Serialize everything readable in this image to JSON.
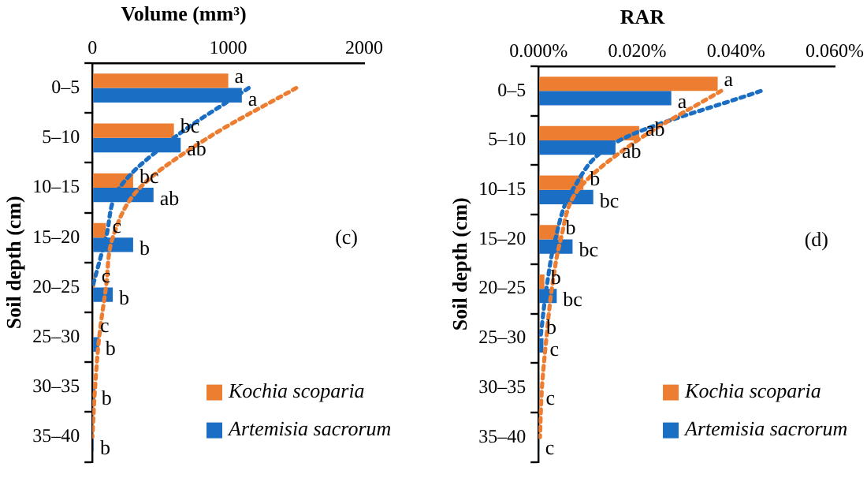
{
  "chart_data": [
    {
      "type": "bar",
      "orientation": "horizontal",
      "title": "Volume (mm³)",
      "ylabel": "Soil depth (cm)",
      "categories": [
        "0–5",
        "5–10",
        "10–15",
        "15–20",
        "20–25",
        "25–30",
        "30–35",
        "35–40"
      ],
      "series": [
        {
          "name": "Kochia scoparia",
          "color": "#ed7d31",
          "values": [
            1000,
            600,
            300,
            100,
            20,
            10,
            null,
            null
          ],
          "value_labels": [
            "a",
            "bc",
            "bc",
            "c",
            "c",
            "c",
            null,
            null
          ]
        },
        {
          "name": "Artemisia sacrorum",
          "color": "#1a6fc4",
          "values": [
            1100,
            650,
            450,
            300,
            150,
            50,
            20,
            10
          ],
          "value_labels": [
            "a",
            "ab",
            "ab",
            "b",
            "b",
            "b",
            "b",
            "b"
          ]
        },
        {
          "type": "line",
          "color": "#1a6fc4",
          "line_style": "dotted",
          "marker": "none",
          "values": [
            1150,
            600,
            200,
            100,
            0,
            null,
            null,
            null
          ]
        },
        {
          "type": "line",
          "color": "#ed7d31",
          "line_style": "dotted",
          "marker": "none",
          "values": [
            1500,
            850,
            350,
            150,
            100,
            50,
            20,
            0
          ]
        }
      ],
      "xlim": [
        0,
        2000
      ],
      "xticks": [
        0,
        1000,
        2000
      ],
      "grid": false,
      "legend": "bottom right",
      "annotations": [
        "(c)"
      ]
    },
    {
      "type": "bar",
      "orientation": "horizontal",
      "title": "RAR",
      "ylabel": "Soil depth (cm)",
      "categories": [
        "0–5",
        "5–10",
        "10–15",
        "15–20",
        "20–25",
        "25–30",
        "30–35",
        "35–40"
      ],
      "series": [
        {
          "name": "Kochia scoparia",
          "color": "#ed7d31",
          "values": [
            0.0363,
            0.0204,
            0.0091,
            0.0042,
            0.0012,
            0.0003,
            null,
            null
          ],
          "value_labels": [
            "a",
            "ab",
            "b",
            "b",
            "b",
            "b",
            null,
            null
          ]
        },
        {
          "name": "Artemisia sacrorum",
          "color": "#1a6fc4",
          "values": [
            0.0269,
            0.0156,
            0.0111,
            0.0069,
            0.0037,
            0.001,
            0.0002,
            0.0001
          ],
          "value_labels": [
            "a",
            "ab",
            "bc",
            "bc",
            "bc",
            "c",
            "c",
            "c"
          ]
        },
        {
          "type": "line",
          "color": "#ed7d31",
          "line_style": "dotted",
          "marker": "none",
          "values": [
            0.037,
            0.02,
            0.008,
            0.0045,
            0.0027,
            0.0016,
            0.0007,
            0.0003
          ]
        },
        {
          "type": "line",
          "color": "#1a6fc4",
          "line_style": "dotted",
          "marker": "none",
          "values": [
            0.045,
            0.0164,
            0.0069,
            0.0034,
            0.0016,
            0.0004,
            null,
            null
          ]
        }
      ],
      "xlim": [
        0,
        0.06
      ],
      "xticks": [
        {
          "value": 0,
          "label": "0.000%"
        },
        {
          "value": 0.02,
          "label": "0.020%"
        },
        {
          "value": 0.04,
          "label": "0.040%"
        },
        {
          "value": 0.06,
          "label": "0.060%"
        }
      ],
      "grid": false,
      "legend": "bottom right",
      "annotations": [
        "(d)"
      ]
    }
  ]
}
